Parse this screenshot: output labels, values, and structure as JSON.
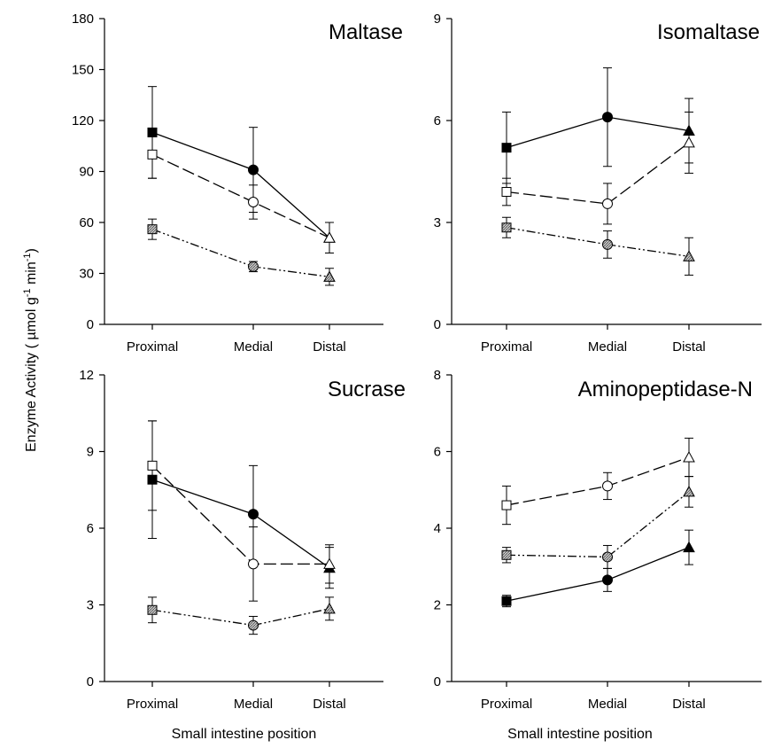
{
  "figure": {
    "ylabel": "Enzyme Activity ( µmol g-1 min-1)",
    "ylabel_parts": {
      "main": "Enzyme Activity ( ",
      "mu": "µ",
      "mol": "mol g",
      "sup1": "-1",
      "min": " min",
      "sup2": "-1",
      "close": ")"
    },
    "xlabel": "Small intestine position"
  },
  "chart_data": [
    {
      "type": "line",
      "title": "Maltase",
      "categories": [
        "Proximal",
        "Medial",
        "Distal"
      ],
      "ylim": [
        0,
        180
      ],
      "yticks": [
        "0",
        "30",
        "60",
        "90",
        "120",
        "150",
        "180"
      ],
      "xlabel": "",
      "ylabel": "",
      "series": [
        {
          "style": "solid-filled",
          "values": [
            113,
            91,
            51
          ],
          "errors": [
            27,
            25,
            9
          ],
          "markers": [
            "square",
            "circle",
            "triangle"
          ]
        },
        {
          "style": "dashed-open",
          "values": [
            100,
            72,
            51
          ],
          "errors": [
            14,
            10,
            9
          ],
          "markers": [
            "square",
            "circle",
            "triangle"
          ]
        },
        {
          "style": "dashdotdot-hatched",
          "values": [
            56,
            34,
            28
          ],
          "errors": [
            6,
            3,
            5
          ],
          "markers": [
            "square",
            "circle",
            "triangle"
          ]
        }
      ]
    },
    {
      "type": "line",
      "title": "Isomaltase",
      "categories": [
        "Proximal",
        "Medial",
        "Distal"
      ],
      "ylim": [
        0,
        9
      ],
      "yticks": [
        "0",
        "3",
        "6",
        "9"
      ],
      "xlabel": "",
      "ylabel": "",
      "series": [
        {
          "style": "solid-filled",
          "values": [
            5.2,
            6.1,
            5.7
          ],
          "errors": [
            1.05,
            1.45,
            0.95
          ],
          "markers": [
            "square",
            "circle",
            "triangle"
          ]
        },
        {
          "style": "dashed-open",
          "values": [
            3.9,
            3.55,
            5.35
          ],
          "errors": [
            0.4,
            0.6,
            0.9
          ],
          "markers": [
            "square",
            "circle",
            "triangle"
          ]
        },
        {
          "style": "dashdotdot-hatched",
          "values": [
            2.85,
            2.35,
            2.0
          ],
          "errors": [
            0.3,
            0.4,
            0.55
          ],
          "markers": [
            "square",
            "circle",
            "triangle"
          ]
        }
      ]
    },
    {
      "type": "line",
      "title": "Sucrase",
      "categories": [
        "Proximal",
        "Medial",
        "Distal"
      ],
      "ylim": [
        0,
        12
      ],
      "yticks": [
        "0",
        "3",
        "6",
        "9",
        "12"
      ],
      "xlabel": "Small intestine position",
      "ylabel": "",
      "series": [
        {
          "style": "solid-filled",
          "values": [
            7.9,
            6.55,
            4.45
          ],
          "errors": [
            2.3,
            1.9,
            0.8
          ],
          "markers": [
            "square",
            "circle",
            "triangle"
          ]
        },
        {
          "style": "dashed-open",
          "values": [
            8.45,
            4.6,
            4.6
          ],
          "errors": [
            1.75,
            1.45,
            0.75
          ],
          "markers": [
            "square",
            "circle",
            "triangle"
          ]
        },
        {
          "style": "dashdotdot-hatched",
          "values": [
            2.8,
            2.2,
            2.85
          ],
          "errors": [
            0.5,
            0.35,
            0.45
          ],
          "markers": [
            "square",
            "circle",
            "triangle"
          ]
        }
      ]
    },
    {
      "type": "line",
      "title": "Aminopeptidase-N",
      "categories": [
        "Proximal",
        "Medial",
        "Distal"
      ],
      "ylim": [
        0,
        8
      ],
      "yticks": [
        "0",
        "2",
        "4",
        "6",
        "8"
      ],
      "xlabel": "Small intestine position",
      "ylabel": "",
      "series": [
        {
          "style": "solid-filled",
          "values": [
            2.1,
            2.65,
            3.5
          ],
          "errors": [
            0.15,
            0.3,
            0.45
          ],
          "markers": [
            "square",
            "circle",
            "triangle"
          ]
        },
        {
          "style": "dashed-open",
          "values": [
            4.6,
            5.1,
            5.85
          ],
          "errors": [
            0.5,
            0.35,
            0.5
          ],
          "markers": [
            "square",
            "circle",
            "triangle"
          ]
        },
        {
          "style": "dashdotdot-hatched",
          "values": [
            3.3,
            3.25,
            4.95
          ],
          "errors": [
            0.2,
            0.3,
            0.4
          ],
          "markers": [
            "square",
            "circle",
            "triangle"
          ]
        }
      ]
    }
  ]
}
